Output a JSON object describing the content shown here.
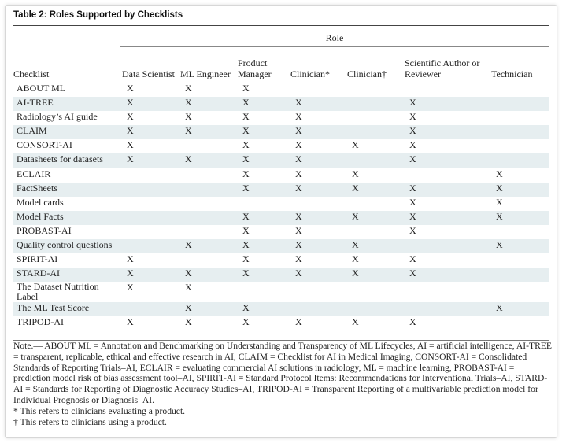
{
  "title": "Table 2: Roles Supported by Checklists",
  "role_header": "Role",
  "columns": [
    "Checklist",
    "Data Scientist",
    "ML Engineer",
    "Product Manager",
    "Clinician*",
    "Clinician†",
    "Scientific Author or Reviewer",
    "Technician"
  ],
  "rows": [
    {
      "name": "ABOUT ML",
      "cells": [
        "X",
        "X",
        "X",
        "",
        "",
        "",
        ""
      ]
    },
    {
      "name": "AI-TREE",
      "cells": [
        "X",
        "X",
        "X",
        "X",
        "",
        "X",
        ""
      ]
    },
    {
      "name": "Radiology’s AI guide",
      "cells": [
        "X",
        "X",
        "X",
        "X",
        "",
        "X",
        ""
      ]
    },
    {
      "name": "CLAIM",
      "cells": [
        "X",
        "X",
        "X",
        "X",
        "",
        "X",
        ""
      ]
    },
    {
      "name": "CONSORT-AI",
      "cells": [
        "X",
        "",
        "X",
        "X",
        "X",
        "X",
        ""
      ]
    },
    {
      "name": "Datasheets for datasets",
      "cells": [
        "X",
        "X",
        "X",
        "X",
        "",
        "X",
        ""
      ]
    },
    {
      "name": "ECLAIR",
      "cells": [
        "",
        "",
        "X",
        "X",
        "X",
        "",
        "X"
      ]
    },
    {
      "name": "FactSheets",
      "cells": [
        "",
        "",
        "X",
        "X",
        "X",
        "X",
        "X"
      ]
    },
    {
      "name": "Model cards",
      "cells": [
        "",
        "",
        "",
        "",
        "",
        "X",
        "X"
      ]
    },
    {
      "name": "Model Facts",
      "cells": [
        "",
        "",
        "X",
        "X",
        "X",
        "X",
        "X"
      ]
    },
    {
      "name": "PROBAST-AI",
      "cells": [
        "",
        "",
        "X",
        "X",
        "",
        "X",
        ""
      ]
    },
    {
      "name": "Quality control questions",
      "cells": [
        "",
        "X",
        "X",
        "X",
        "X",
        "",
        "X"
      ]
    },
    {
      "name": "SPIRIT-AI",
      "cells": [
        "X",
        "",
        "X",
        "X",
        "X",
        "X",
        ""
      ]
    },
    {
      "name": "STARD-AI",
      "cells": [
        "X",
        "X",
        "X",
        "X",
        "X",
        "X",
        ""
      ]
    },
    {
      "name": "The Dataset Nutrition Label",
      "cells": [
        "X",
        "X",
        "",
        "",
        "",
        "",
        ""
      ]
    },
    {
      "name": "The ML Test Score",
      "cells": [
        "",
        "X",
        "X",
        "",
        "",
        "",
        "X"
      ]
    },
    {
      "name": "TRIPOD-AI",
      "cells": [
        "X",
        "X",
        "X",
        "X",
        "X",
        "X",
        ""
      ]
    }
  ],
  "note": "Note.— ABOUT ML = Annotation and Benchmarking on Understanding and Transparency of ML Lifecycles, AI = artificial intelligence, AI-TREE = transparent, replicable, ethical and effective research in AI, CLAIM = Checklist for AI in Medical Imaging, CONSORT-AI = Consolidated Standards of Reporting Trials–AI, ECLAIR = evaluating commercial AI solutions in radiology, ML = machine learning, PROBAST-AI = prediction model risk of bias assessment tool–AI, SPIRIT-AI = Standard Protocol Items: Recommendations for Interventional Trials–AI, STARD-AI = Standards for Reporting of Diagnostic Accuracy Studies–AI, TRIPOD-AI = Transparent Reporting of a multivariable prediction model for Individual Prognosis or Diagnosis–AI.",
  "footnote_star": "* This refers to clinicians evaluating a product.",
  "footnote_dagger": "† This refers to clinicians using a product."
}
